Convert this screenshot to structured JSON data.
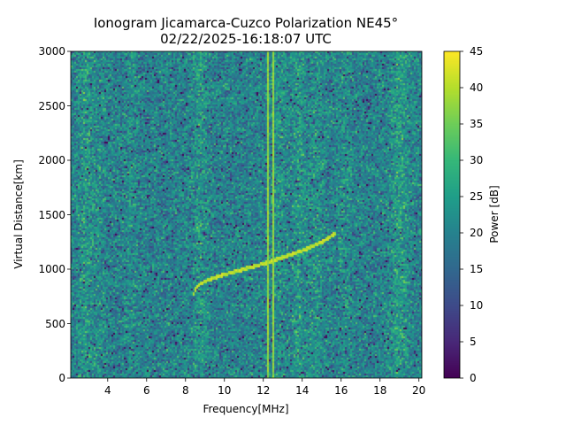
{
  "chart_data": {
    "type": "heatmap",
    "title": "Ionogram Jicamarca-Cuzco Polarization NE45°",
    "subtitle": "02/22/2025-16:18:07 UTC",
    "xlabel": "Frequency[MHz]",
    "ylabel": "Virtual Distance[km]",
    "xlim": [
      2.1,
      20.15
    ],
    "ylim": [
      0,
      3000
    ],
    "xticks": [
      "4",
      "6",
      "8",
      "10",
      "12",
      "14",
      "16",
      "18",
      "20"
    ],
    "yticks": [
      "0",
      "500",
      "1000",
      "1500",
      "2000",
      "2500",
      "3000"
    ],
    "colorbar": {
      "label": "Power [dB]",
      "range": [
        0,
        45
      ],
      "ticks": [
        "0",
        "5",
        "10",
        "15",
        "20",
        "25",
        "30",
        "35",
        "40",
        "45"
      ],
      "colormap": "viridis"
    },
    "echo_trace": [
      [
        8.3,
        730
      ],
      [
        8.4,
        800
      ],
      [
        8.6,
        860
      ],
      [
        9.0,
        900
      ],
      [
        10,
        960
      ],
      [
        11,
        1010
      ],
      [
        12,
        1060
      ],
      [
        13,
        1120
      ],
      [
        14,
        1180
      ],
      [
        15,
        1260
      ],
      [
        15.7,
        1340
      ]
    ],
    "interference_lines_mhz": [
      12.2,
      12.45
    ],
    "background_dB_mean": 20
  }
}
